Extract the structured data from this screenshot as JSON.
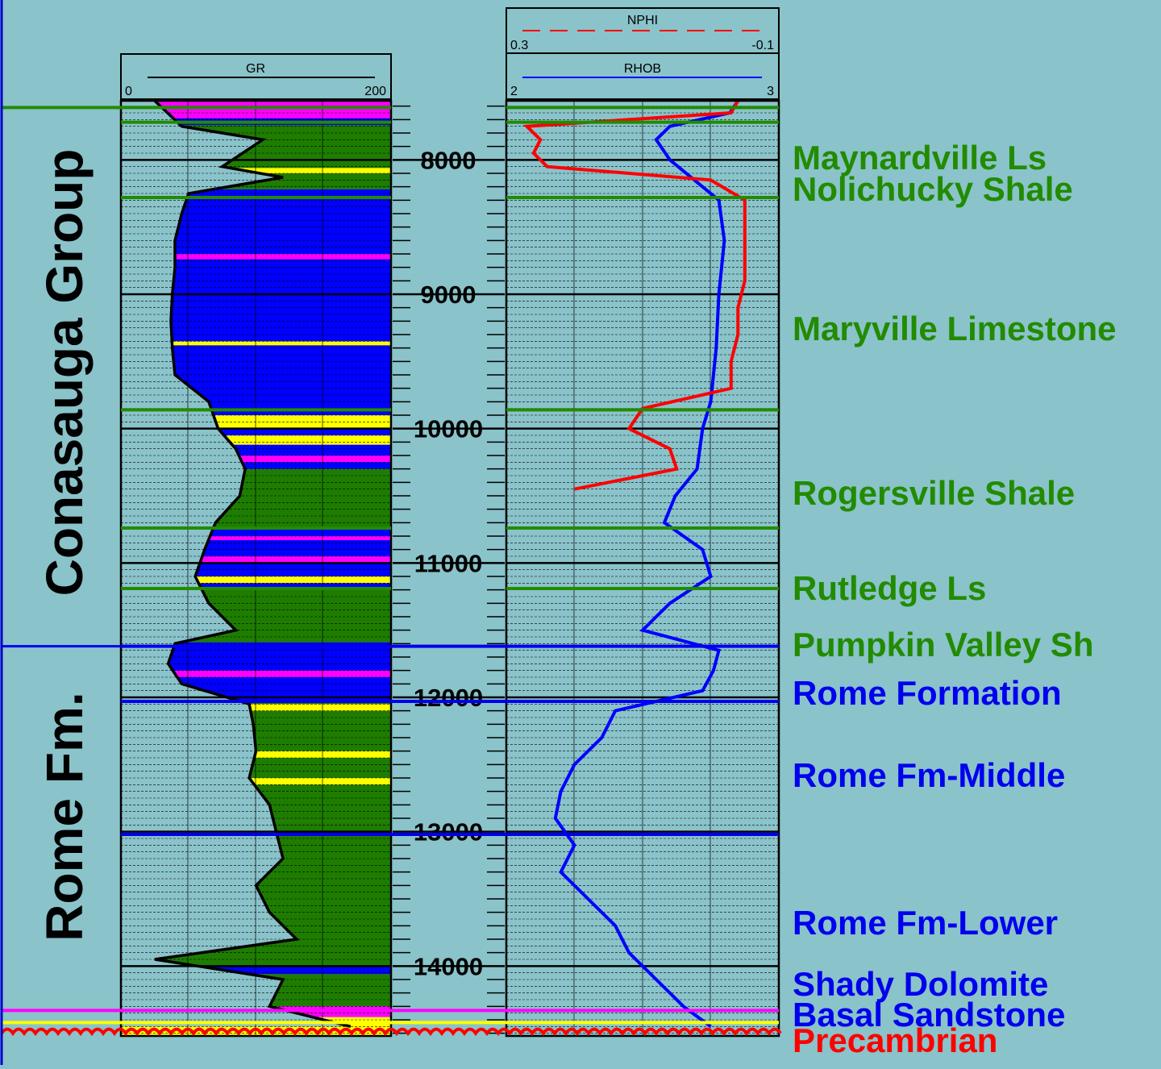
{
  "chart_data": [
    {
      "type": "line",
      "track": "GR",
      "curves": [
        {
          "name": "GR",
          "scale": [
            0,
            200
          ],
          "color": "#000000",
          "depth": [
            7560,
            7750,
            7850,
            7950,
            8050,
            8130,
            8250,
            8400,
            8600,
            8800,
            9000,
            9200,
            9400,
            9600,
            9800,
            10000,
            10150,
            10300,
            10500,
            10700,
            10900,
            11100,
            11300,
            11500,
            11600,
            11750,
            11900,
            12050,
            12200,
            12400,
            12600,
            12800,
            13000,
            13200,
            13400,
            13600,
            13800,
            13950,
            14100,
            14300,
            14450
          ],
          "values": [
            25,
            45,
            105,
            90,
            75,
            120,
            50,
            45,
            40,
            40,
            38,
            37,
            38,
            40,
            65,
            72,
            85,
            92,
            88,
            70,
            62,
            55,
            65,
            85,
            40,
            35,
            45,
            95,
            98,
            100,
            95,
            110,
            115,
            120,
            100,
            110,
            130,
            25,
            120,
            110,
            170
          ]
        }
      ],
      "lithology_fill_colors": {
        "shale": "#1e7d00",
        "sandstone": "#ffff00",
        "limestone": "#0000ff",
        "dolomite": "#ff00ff"
      }
    },
    {
      "type": "line",
      "track": "NPHI / RHOB",
      "curves": [
        {
          "name": "NPHI",
          "scale": [
            0.3,
            -0.1
          ],
          "color": "#ff0000",
          "line_style": "dashed",
          "depth": [
            7560,
            7650,
            7750,
            7850,
            7950,
            8050,
            8150,
            8300,
            8500,
            8700,
            8900,
            9100,
            9300,
            9500,
            9700,
            9850,
            10000,
            10150,
            10300,
            10450
          ],
          "values": [
            -0.04,
            -0.03,
            0.27,
            0.25,
            0.26,
            0.24,
            0.0,
            -0.05,
            -0.05,
            -0.05,
            -0.05,
            -0.04,
            -0.04,
            -0.03,
            -0.03,
            0.1,
            0.12,
            0.06,
            0.05,
            0.2
          ]
        },
        {
          "name": "RHOB",
          "scale": [
            2,
            3
          ],
          "color": "#0000ff",
          "line_style": "solid",
          "depth": [
            7560,
            7650,
            7750,
            7850,
            8000,
            8300,
            8600,
            9000,
            9400,
            9800,
            10000,
            10300,
            10500,
            10700,
            10900,
            11100,
            11300,
            11500,
            11650,
            11800,
            11950,
            12100,
            12300,
            12500,
            12700,
            12900,
            13100,
            13300,
            13500,
            13700,
            13900,
            14100,
            14300,
            14450
          ],
          "values": [
            2.85,
            2.82,
            2.6,
            2.55,
            2.6,
            2.78,
            2.8,
            2.78,
            2.77,
            2.75,
            2.72,
            2.7,
            2.62,
            2.58,
            2.72,
            2.75,
            2.6,
            2.5,
            2.78,
            2.76,
            2.72,
            2.4,
            2.35,
            2.25,
            2.2,
            2.18,
            2.25,
            2.2,
            2.3,
            2.4,
            2.45,
            2.55,
            2.65,
            2.75
          ]
        }
      ]
    }
  ],
  "depth_axis": {
    "labels": [
      "8000",
      "9000",
      "10000",
      "11000",
      "12000",
      "13000",
      "14000"
    ],
    "range": [
      7560,
      14520
    ]
  },
  "tracks": {
    "gr": {
      "curve_label": "GR",
      "scale_min": "0",
      "scale_max": "200"
    },
    "nphi": {
      "curve_label": "NPHI",
      "scale_min": "0.3",
      "scale_max": "-0.1"
    },
    "rhob": {
      "curve_label": "RHOB",
      "scale_min": "2",
      "scale_max": "3"
    }
  },
  "groups": [
    {
      "label": "Conasauga Group"
    },
    {
      "label": "Rome Fm."
    }
  ],
  "formations": [
    {
      "label": "Maynardville Ls",
      "top": 7610,
      "color": "#228b00"
    },
    {
      "label": "Nolichucky Shale",
      "top": 7720,
      "color": "#228b00"
    },
    {
      "label": "Maryville Limestone",
      "top": 8280,
      "color": "#228b00"
    },
    {
      "label": "Rogersville Shale",
      "top": 9860,
      "color": "#228b00"
    },
    {
      "label": "Rutledge Ls",
      "top": 10740,
      "color": "#228b00"
    },
    {
      "label": "Pumpkin Valley Sh",
      "top": 11190,
      "color": "#228b00"
    },
    {
      "label": "Rome Formation",
      "top": 11620,
      "color": "#0000ee"
    },
    {
      "label": "Rome Fm-Middle",
      "top": 12030,
      "color": "#0000ee"
    },
    {
      "label": "Rome Fm-Lower",
      "top": 13020,
      "color": "#0000ee"
    },
    {
      "label": "Shady Dolomite",
      "top": 14260,
      "color": "#0000ee"
    },
    {
      "label": "Basal Sandstone",
      "top": 14360,
      "color": "#0000ee"
    },
    {
      "label": "Precambrian",
      "top": 14470,
      "color": "#ff0000"
    }
  ],
  "colors": {
    "background": "#8ac3ca",
    "shale": "#1e7d00",
    "sandstone": "#ffff00",
    "limestone": "#0000ff",
    "dolomite": "#ff00ff",
    "green_top": "#228b00",
    "blue_top": "#0000ee",
    "precambrian": "#ff0000"
  }
}
